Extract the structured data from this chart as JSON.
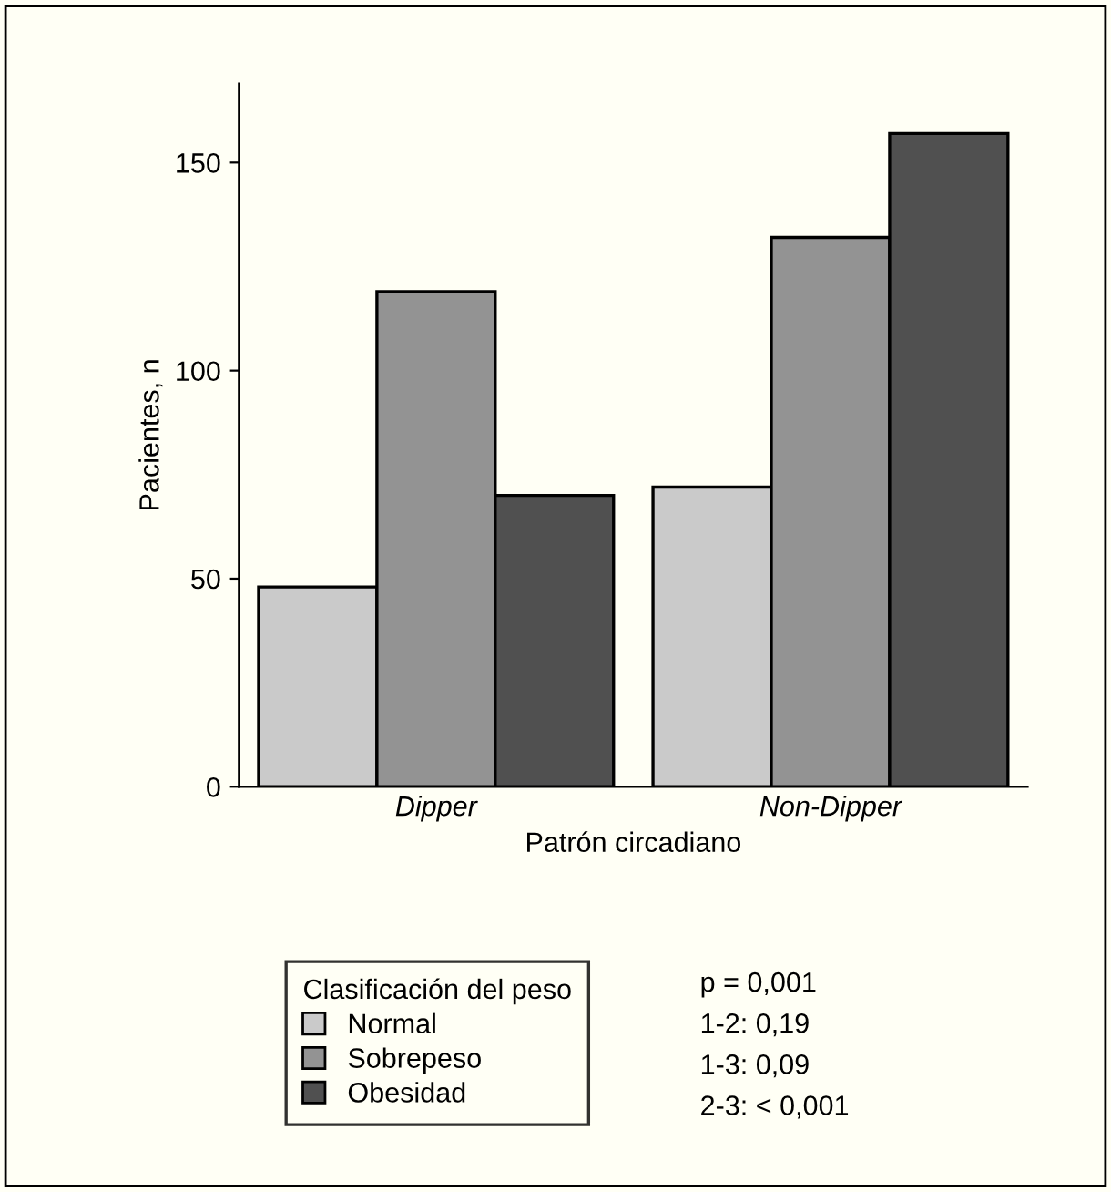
{
  "chart_data": {
    "type": "bar",
    "xlabel": "Patrón circadiano",
    "ylabel": "Pacientes, n",
    "legend_title": "Clasificación del peso",
    "categories": [
      "Dipper",
      "Non-Dipper"
    ],
    "series": [
      {
        "name": "Normal",
        "color": "#cacaca",
        "values": [
          48,
          72
        ]
      },
      {
        "name": "Sobrepeso",
        "color": "#939393",
        "values": [
          119,
          132
        ]
      },
      {
        "name": "Obesidad",
        "color": "#505050",
        "values": [
          70,
          157
        ]
      }
    ],
    "ylim": [
      0,
      169
    ],
    "yticks": [
      0,
      50,
      100,
      150
    ],
    "grid": false,
    "legend": "bottom",
    "annotations": [
      "p = 0,001",
      "1-2: 0,19",
      "1-3: 0,09",
      "2-3: < 0,001"
    ]
  }
}
